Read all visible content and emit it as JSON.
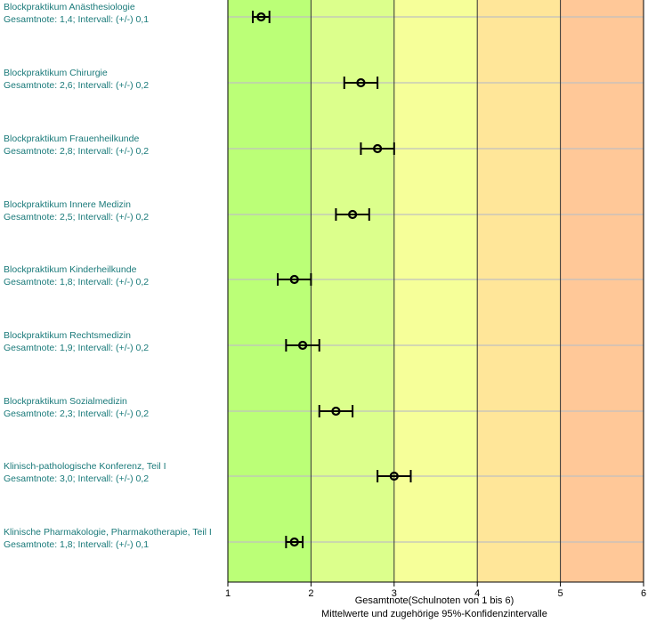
{
  "chart_data": {
    "type": "scatter",
    "orientation": "horizontal",
    "xlabel": "Gesamtnote(Schulnoten von 1 bis 6)",
    "subtitle": "Mittelwerte und zugehörige 95%-Konfidenzintervalle",
    "xlim": [
      1,
      6
    ],
    "xticks": [
      "1",
      "2",
      "3",
      "4",
      "5",
      "6"
    ],
    "grid": true,
    "bands": [
      {
        "from": 1,
        "to": 2,
        "color": "#bbff77"
      },
      {
        "from": 2,
        "to": 3,
        "color": "#dcff8c"
      },
      {
        "from": 3,
        "to": 4,
        "color": "#f6ff99"
      },
      {
        "from": 4,
        "to": 5,
        "color": "#ffe699"
      },
      {
        "from": 5,
        "to": 6,
        "color": "#ffc898"
      }
    ],
    "items": [
      {
        "name": "Blockpraktikum Anästhesiologie",
        "detail": "Gesamtnote: 1,4;  Intervall: (+/-) 0,1",
        "value": 1.4,
        "ci": 0.1
      },
      {
        "name": "Blockpraktikum Chirurgie",
        "detail": "Gesamtnote: 2,6;  Intervall: (+/-) 0,2",
        "value": 2.6,
        "ci": 0.2
      },
      {
        "name": "Blockpraktikum Frauenheilkunde",
        "detail": "Gesamtnote: 2,8;  Intervall: (+/-) 0,2",
        "value": 2.8,
        "ci": 0.2
      },
      {
        "name": "Blockpraktikum Innere Medizin",
        "detail": "Gesamtnote: 2,5;  Intervall: (+/-) 0,2",
        "value": 2.5,
        "ci": 0.2
      },
      {
        "name": "Blockpraktikum Kinderheilkunde",
        "detail": "Gesamtnote: 1,8;  Intervall: (+/-) 0,2",
        "value": 1.8,
        "ci": 0.2
      },
      {
        "name": "Blockpraktikum Rechtsmedizin",
        "detail": "Gesamtnote: 1,9;  Intervall: (+/-) 0,2",
        "value": 1.9,
        "ci": 0.2
      },
      {
        "name": "Blockpraktikum Sozialmedizin",
        "detail": "Gesamtnote: 2,3;  Intervall: (+/-) 0,2",
        "value": 2.3,
        "ci": 0.2
      },
      {
        "name": "Klinisch-pathologische Konferenz, Teil I",
        "detail": "Gesamtnote: 3,0;  Intervall: (+/-) 0,2",
        "value": 3.0,
        "ci": 0.2
      },
      {
        "name": "Klinische Pharmakologie, Pharmakotherapie, Teil I",
        "detail": "Gesamtnote: 1,8;  Intervall: (+/-) 0,1",
        "value": 1.8,
        "ci": 0.1
      }
    ]
  }
}
